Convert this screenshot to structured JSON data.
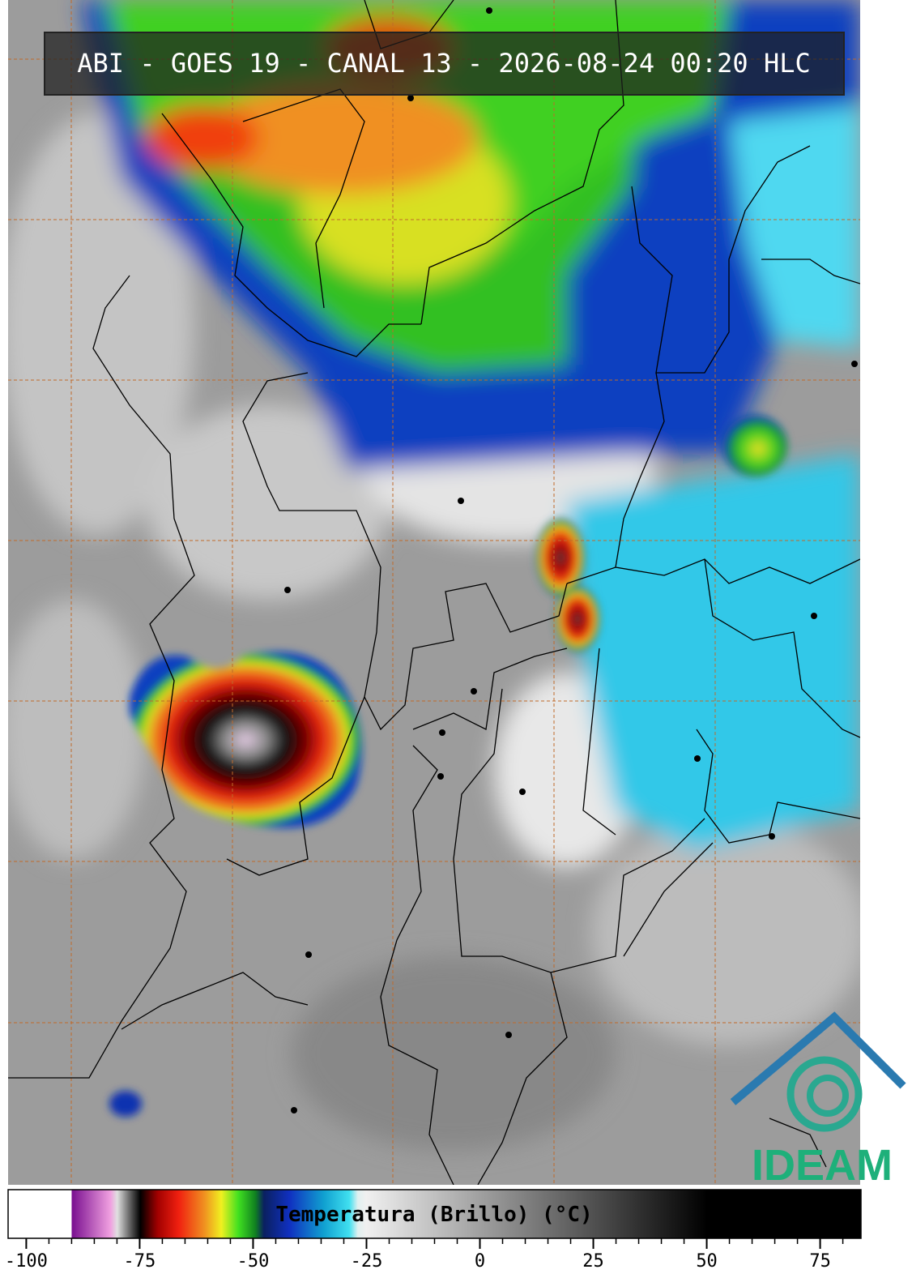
{
  "title": "ABI - GOES 19 - CANAL 13 - 2026-08-24 00:20 HLC",
  "colorbar": {
    "label": "Temperatura (Brillo) (°C)",
    "lim": [
      -104,
      84
    ],
    "ticks": [
      -100,
      -75,
      -50,
      -25,
      0,
      25,
      50,
      75
    ]
  },
  "logo": {
    "text": "IDEAM"
  }
}
